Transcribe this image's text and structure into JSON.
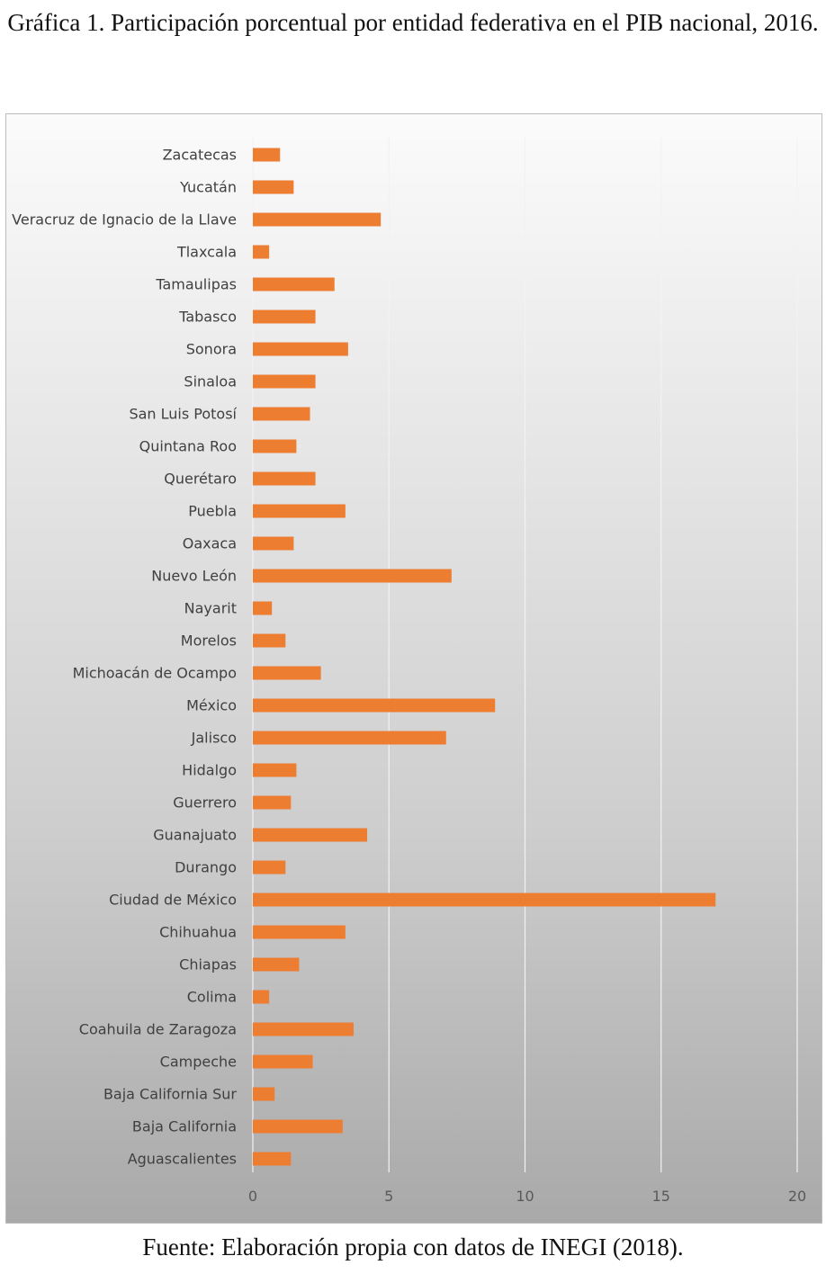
{
  "title": "Gráfica 1. Participación porcentual por entidad federativa en el PIB nacional, 2016.",
  "source": "Fuente: Elaboración propia con datos de INEGI (2018).",
  "colors": {
    "bar": "#ED7D31",
    "grid": "#f2f2f2"
  },
  "chart_data": {
    "type": "bar",
    "orientation": "horizontal",
    "title": "",
    "xlabel": "",
    "ylabel": "",
    "xlim": [
      0,
      20
    ],
    "ticks": [
      0,
      5,
      10,
      15,
      20
    ],
    "grid": true,
    "legend": "none",
    "categories": [
      "Zacatecas",
      "Yucatán",
      "Veracruz de Ignacio de la Llave",
      "Tlaxcala",
      "Tamaulipas",
      "Tabasco",
      "Sonora",
      "Sinaloa",
      "San Luis Potosí",
      "Quintana Roo",
      "Querétaro",
      "Puebla",
      "Oaxaca",
      "Nuevo León",
      "Nayarit",
      "Morelos",
      "Michoacán de Ocampo",
      "México",
      "Jalisco",
      "Hidalgo",
      "Guerrero",
      "Guanajuato",
      "Durango",
      "Ciudad de México",
      "Chihuahua",
      "Chiapas",
      "Colima",
      "Coahuila de Zaragoza",
      "Campeche",
      "Baja California Sur",
      "Baja California",
      "Aguascalientes"
    ],
    "values": [
      1.0,
      1.5,
      4.7,
      0.6,
      3.0,
      2.3,
      3.5,
      2.3,
      2.1,
      1.6,
      2.3,
      3.4,
      1.5,
      7.3,
      0.7,
      1.2,
      2.5,
      8.9,
      7.1,
      1.6,
      1.4,
      4.2,
      1.2,
      17.0,
      3.4,
      1.7,
      0.6,
      3.7,
      2.2,
      0.8,
      3.3,
      1.4
    ]
  }
}
